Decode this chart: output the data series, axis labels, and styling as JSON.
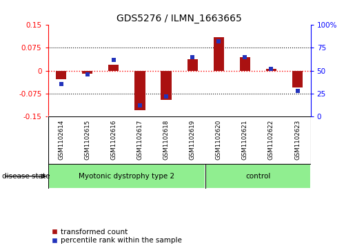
{
  "title": "GDS5276 / ILMN_1663665",
  "samples": [
    "GSM1102614",
    "GSM1102615",
    "GSM1102616",
    "GSM1102617",
    "GSM1102618",
    "GSM1102619",
    "GSM1102620",
    "GSM1102621",
    "GSM1102622",
    "GSM1102623"
  ],
  "red_values": [
    -0.028,
    -0.01,
    0.02,
    -0.13,
    -0.095,
    0.038,
    0.11,
    0.045,
    0.005,
    -0.055
  ],
  "blue_values": [
    35,
    46,
    62,
    12,
    22,
    65,
    82,
    65,
    52,
    28
  ],
  "groups": [
    {
      "label": "Myotonic dystrophy type 2",
      "start": 0,
      "end": 5
    },
    {
      "label": "control",
      "start": 6,
      "end": 9
    }
  ],
  "ylim_left": [
    -0.15,
    0.15
  ],
  "ylim_right": [
    0,
    100
  ],
  "yticks_left": [
    -0.15,
    -0.075,
    0,
    0.075,
    0.15
  ],
  "ytick_labels_left": [
    "-0.15",
    "-0.075",
    "0",
    "0.075",
    "0.15"
  ],
  "yticks_right": [
    0,
    25,
    50,
    75,
    100
  ],
  "ytick_labels_right": [
    "0",
    "25",
    "50",
    "75",
    "100%"
  ],
  "dotted_lines": [
    -0.075,
    0.0,
    0.075
  ],
  "bar_color": "#aa1111",
  "square_color": "#2233bb",
  "group_color": "#90ee90",
  "sample_bg_color": "#cccccc",
  "legend_red_label": "transformed count",
  "legend_blue_label": "percentile rank within the sample",
  "disease_state_label": "disease state"
}
